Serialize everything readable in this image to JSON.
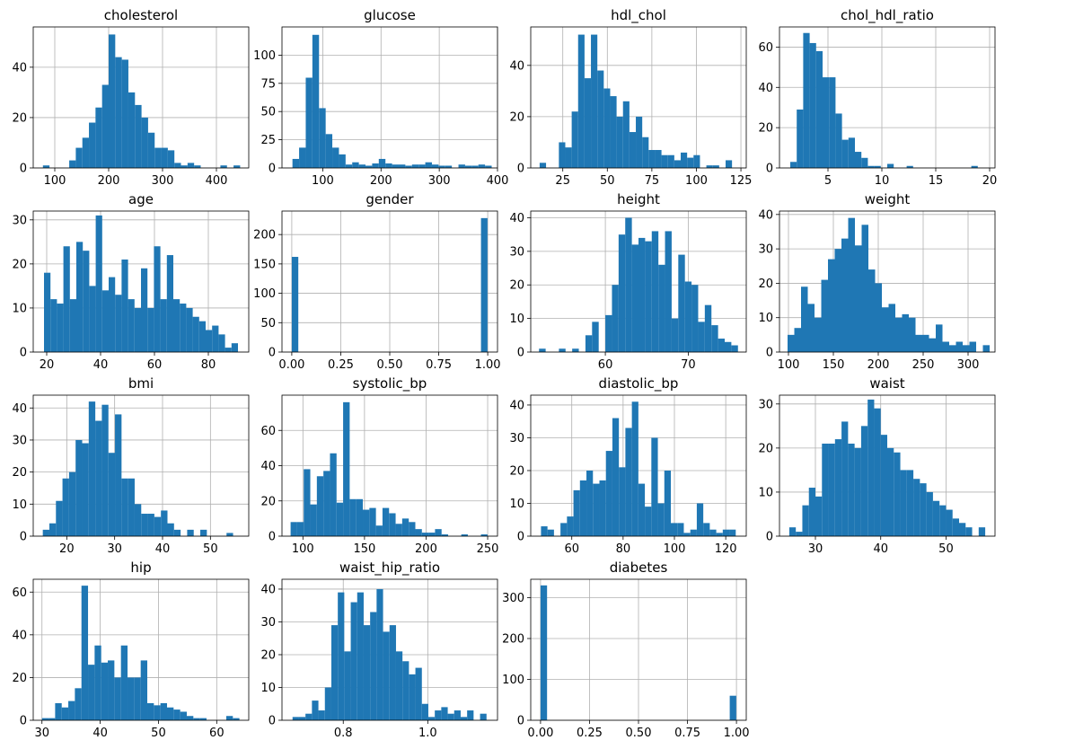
{
  "chart_data": [
    {
      "type": "bar",
      "title": "cholesterol",
      "xlim": [
        60,
        460
      ],
      "ylim": [
        0,
        56
      ],
      "xticks": [
        100,
        200,
        300,
        400
      ],
      "xtick_labels": [
        "100",
        "200",
        "300",
        "400"
      ],
      "yticks": [
        0,
        20,
        40
      ],
      "ytick_labels": [
        "0",
        "20",
        "40"
      ],
      "bins": {
        "start": 78,
        "width": 12.2,
        "counts": [
          1,
          0,
          0,
          0,
          3,
          8,
          12,
          18,
          24,
          33,
          53,
          44,
          43,
          30,
          25,
          20,
          14,
          8,
          8,
          7,
          2,
          1,
          2,
          1,
          0,
          0,
          0,
          1,
          0,
          1
        ]
      }
    },
    {
      "type": "bar",
      "title": "glucose",
      "xlim": [
        30,
        400
      ],
      "ylim": [
        0,
        125
      ],
      "xticks": [
        100,
        200,
        300,
        400
      ],
      "xtick_labels": [
        "100",
        "200",
        "300",
        "400"
      ],
      "yticks": [
        0,
        25,
        50,
        75,
        100
      ],
      "ytick_labels": [
        "0",
        "25",
        "50",
        "75",
        "100"
      ],
      "bins": {
        "start": 48,
        "width": 11.4,
        "counts": [
          8,
          18,
          80,
          118,
          53,
          30,
          18,
          12,
          3,
          5,
          3,
          2,
          4,
          8,
          4,
          3,
          3,
          2,
          3,
          3,
          5,
          3,
          2,
          2,
          0,
          3,
          2,
          2,
          3,
          2
        ]
      }
    },
    {
      "type": "bar",
      "title": "hdl_chol",
      "xlim": [
        7,
        128
      ],
      "ylim": [
        0,
        55
      ],
      "xticks": [
        25,
        50,
        75,
        100,
        125
      ],
      "xtick_labels": [
        "25",
        "50",
        "75",
        "100",
        "125"
      ],
      "yticks": [
        0,
        20,
        40
      ],
      "ytick_labels": [
        "0",
        "20",
        "40"
      ],
      "bins": {
        "start": 12,
        "width": 3.6,
        "counts": [
          2,
          0,
          0,
          10,
          8,
          22,
          52,
          35,
          52,
          38,
          31,
          28,
          20,
          26,
          14,
          20,
          12,
          7,
          7,
          5,
          5,
          3,
          6,
          4,
          5,
          0,
          1,
          1,
          0,
          3
        ]
      }
    },
    {
      "type": "bar",
      "title": "chol_hdl_ratio",
      "xlim": [
        0.5,
        20.5
      ],
      "ylim": [
        0,
        70
      ],
      "xticks": [
        5,
        10,
        15,
        20
      ],
      "xtick_labels": [
        "5",
        "10",
        "15",
        "20"
      ],
      "yticks": [
        0,
        20,
        40,
        60
      ],
      "ytick_labels": [
        "0",
        "20",
        "40",
        "60"
      ],
      "bins": {
        "start": 1.5,
        "width": 0.6,
        "counts": [
          3,
          29,
          67,
          62,
          58,
          45,
          45,
          27,
          14,
          15,
          8,
          5,
          1,
          1,
          0,
          2,
          0,
          0,
          1,
          0,
          0,
          0,
          0,
          0,
          0,
          0,
          0,
          0,
          1,
          0
        ]
      }
    },
    {
      "type": "bar",
      "title": "age",
      "xlim": [
        15,
        95
      ],
      "ylim": [
        0,
        32
      ],
      "xticks": [
        20,
        40,
        60,
        80
      ],
      "xtick_labels": [
        "20",
        "40",
        "60",
        "80"
      ],
      "yticks": [
        0,
        10,
        20,
        30
      ],
      "ytick_labels": [
        "0",
        "10",
        "20",
        "30"
      ],
      "bins": {
        "start": 19,
        "width": 2.4,
        "counts": [
          18,
          12,
          11,
          24,
          12,
          25,
          23,
          15,
          31,
          14,
          17,
          13,
          21,
          12,
          10,
          19,
          10,
          24,
          12,
          22,
          12,
          11,
          10,
          8,
          7,
          5,
          6,
          4,
          1,
          2
        ]
      }
    },
    {
      "type": "bar",
      "title": "gender",
      "xlim": [
        -0.05,
        1.05
      ],
      "ylim": [
        0,
        240
      ],
      "xticks": [
        0,
        0.25,
        0.5,
        0.75,
        1
      ],
      "xtick_labels": [
        "0.00",
        "0.25",
        "0.50",
        "0.75",
        "1.00"
      ],
      "yticks": [
        0,
        50,
        100,
        150,
        200
      ],
      "ytick_labels": [
        "0",
        "50",
        "100",
        "150",
        "200"
      ],
      "bins": {
        "start": 0,
        "width": 0.0333,
        "counts": [
          162,
          0,
          0,
          0,
          0,
          0,
          0,
          0,
          0,
          0,
          0,
          0,
          0,
          0,
          0,
          0,
          0,
          0,
          0,
          0,
          0,
          0,
          0,
          0,
          0,
          0,
          0,
          0,
          0,
          228
        ]
      }
    },
    {
      "type": "bar",
      "title": "height",
      "xlim": [
        51,
        77
      ],
      "ylim": [
        0,
        42
      ],
      "xticks": [
        60,
        70
      ],
      "xtick_labels": [
        "60",
        "70"
      ],
      "yticks": [
        0,
        10,
        20,
        30,
        40
      ],
      "ytick_labels": [
        "0",
        "10",
        "20",
        "30",
        "40"
      ],
      "bins": {
        "start": 52,
        "width": 0.8,
        "counts": [
          1,
          0,
          0,
          1,
          0,
          1,
          0,
          5,
          9,
          0,
          11,
          20,
          35,
          40,
          32,
          34,
          33,
          36,
          26,
          36,
          10,
          29,
          21,
          20,
          9,
          14,
          8,
          4,
          3,
          2
        ]
      }
    },
    {
      "type": "bar",
      "title": "weight",
      "xlim": [
        90,
        330
      ],
      "ylim": [
        0,
        41
      ],
      "xticks": [
        100,
        150,
        200,
        250,
        300
      ],
      "xtick_labels": [
        "100",
        "150",
        "200",
        "250",
        "300"
      ],
      "yticks": [
        0,
        10,
        20,
        30,
        40
      ],
      "ytick_labels": [
        "0",
        "10",
        "20",
        "30",
        "40"
      ],
      "bins": {
        "start": 99,
        "width": 7.5,
        "counts": [
          5,
          7,
          19,
          14,
          10,
          21,
          27,
          30,
          33,
          39,
          31,
          37,
          24,
          20,
          13,
          14,
          10,
          11,
          10,
          5,
          5,
          4,
          8,
          3,
          2,
          3,
          2,
          3,
          0,
          2
        ]
      }
    },
    {
      "type": "bar",
      "title": "bmi",
      "xlim": [
        13,
        58
      ],
      "ylim": [
        0,
        44
      ],
      "xticks": [
        20,
        30,
        40,
        50
      ],
      "xtick_labels": [
        "20",
        "30",
        "40",
        "50"
      ],
      "yticks": [
        0,
        10,
        20,
        30,
        40
      ],
      "ytick_labels": [
        "0",
        "10",
        "20",
        "30",
        "40"
      ],
      "bins": {
        "start": 15,
        "width": 1.37,
        "counts": [
          2,
          4,
          11,
          18,
          20,
          30,
          29,
          42,
          36,
          41,
          26,
          38,
          18,
          18,
          10,
          7,
          7,
          6,
          8,
          4,
          2,
          0,
          2,
          0,
          2,
          0,
          0,
          0,
          1,
          0
        ]
      }
    },
    {
      "type": "bar",
      "title": "systolic_bp",
      "xlim": [
        83,
        258
      ],
      "ylim": [
        0,
        80
      ],
      "xticks": [
        100,
        150,
        200,
        250
      ],
      "xtick_labels": [
        "100",
        "150",
        "200",
        "250"
      ],
      "yticks": [
        0,
        20,
        40,
        60
      ],
      "ytick_labels": [
        "0",
        "20",
        "40",
        "60"
      ],
      "bins": {
        "start": 90,
        "width": 5.33,
        "counts": [
          8,
          8,
          38,
          18,
          34,
          37,
          47,
          19,
          76,
          21,
          21,
          15,
          16,
          6,
          16,
          13,
          7,
          10,
          8,
          4,
          2,
          2,
          4,
          1,
          0,
          0,
          1,
          0,
          0,
          1
        ]
      }
    },
    {
      "type": "bar",
      "title": "diastolic_bp",
      "xlim": [
        44,
        128
      ],
      "ylim": [
        0,
        43
      ],
      "xticks": [
        60,
        80,
        100,
        120
      ],
      "xtick_labels": [
        "60",
        "80",
        "100",
        "120"
      ],
      "yticks": [
        0,
        10,
        20,
        30,
        40
      ],
      "ytick_labels": [
        "0",
        "10",
        "20",
        "30",
        "40"
      ],
      "bins": {
        "start": 48,
        "width": 2.53,
        "counts": [
          3,
          2,
          0,
          4,
          6,
          14,
          17,
          20,
          16,
          17,
          26,
          36,
          21,
          33,
          41,
          16,
          9,
          30,
          10,
          20,
          4,
          4,
          1,
          2,
          10,
          4,
          2,
          1,
          2,
          2
        ]
      }
    },
    {
      "type": "bar",
      "title": "waist",
      "xlim": [
        24.5,
        57.5
      ],
      "ylim": [
        0,
        32
      ],
      "xticks": [
        30,
        40,
        50
      ],
      "xtick_labels": [
        "30",
        "40",
        "50"
      ],
      "yticks": [
        0,
        10,
        20,
        30
      ],
      "ytick_labels": [
        "0",
        "10",
        "20",
        "30"
      ],
      "bins": {
        "start": 26,
        "width": 1,
        "counts": [
          2,
          1,
          7,
          11,
          9,
          21,
          21,
          22,
          26,
          21,
          20,
          25,
          31,
          29,
          23,
          20,
          19,
          15,
          15,
          13,
          12,
          10,
          8,
          7,
          6,
          4,
          3,
          2,
          0,
          2
        ]
      }
    },
    {
      "type": "bar",
      "title": "hip",
      "xlim": [
        28.5,
        65.5
      ],
      "ylim": [
        0,
        66
      ],
      "xticks": [
        30,
        40,
        50,
        60
      ],
      "xtick_labels": [
        "30",
        "40",
        "50",
        "60"
      ],
      "yticks": [
        0,
        20,
        40,
        60
      ],
      "ytick_labels": [
        "0",
        "20",
        "40",
        "60"
      ],
      "bins": {
        "start": 30,
        "width": 1.13,
        "counts": [
          1,
          1,
          8,
          6,
          9,
          15,
          63,
          26,
          35,
          27,
          28,
          20,
          35,
          20,
          20,
          28,
          8,
          7,
          8,
          6,
          5,
          4,
          2,
          1,
          1,
          0,
          0,
          0,
          2,
          1
        ]
      }
    },
    {
      "type": "bar",
      "title": "waist_hip_ratio",
      "xlim": [
        0.655,
        1.165
      ],
      "ylim": [
        0,
        43
      ],
      "xticks": [
        0.8,
        1.0
      ],
      "xtick_labels": [
        "0.8",
        "1.0"
      ],
      "yticks": [
        0,
        10,
        20,
        30,
        40
      ],
      "ytick_labels": [
        "0",
        "10",
        "20",
        "30",
        "40"
      ],
      "bins": {
        "start": 0.68,
        "width": 0.0153,
        "counts": [
          1,
          1,
          2,
          6,
          3,
          10,
          29,
          39,
          21,
          36,
          39,
          29,
          33,
          40,
          27,
          29,
          21,
          18,
          14,
          16,
          5,
          1,
          3,
          4,
          2,
          3,
          1,
          3,
          0,
          2
        ]
      }
    },
    {
      "type": "bar",
      "title": "diabetes",
      "xlim": [
        -0.05,
        1.05
      ],
      "ylim": [
        0,
        345
      ],
      "xticks": [
        0,
        0.25,
        0.5,
        0.75,
        1
      ],
      "xtick_labels": [
        "0.00",
        "0.25",
        "0.50",
        "0.75",
        "1.00"
      ],
      "yticks": [
        0,
        100,
        200,
        300
      ],
      "ytick_labels": [
        "0",
        "100",
        "200",
        "300"
      ],
      "bins": {
        "start": 0,
        "width": 0.0333,
        "counts": [
          330,
          0,
          0,
          0,
          0,
          0,
          0,
          0,
          0,
          0,
          0,
          0,
          0,
          0,
          0,
          0,
          0,
          0,
          0,
          0,
          0,
          0,
          0,
          0,
          0,
          0,
          0,
          0,
          0,
          60
        ]
      }
    }
  ]
}
